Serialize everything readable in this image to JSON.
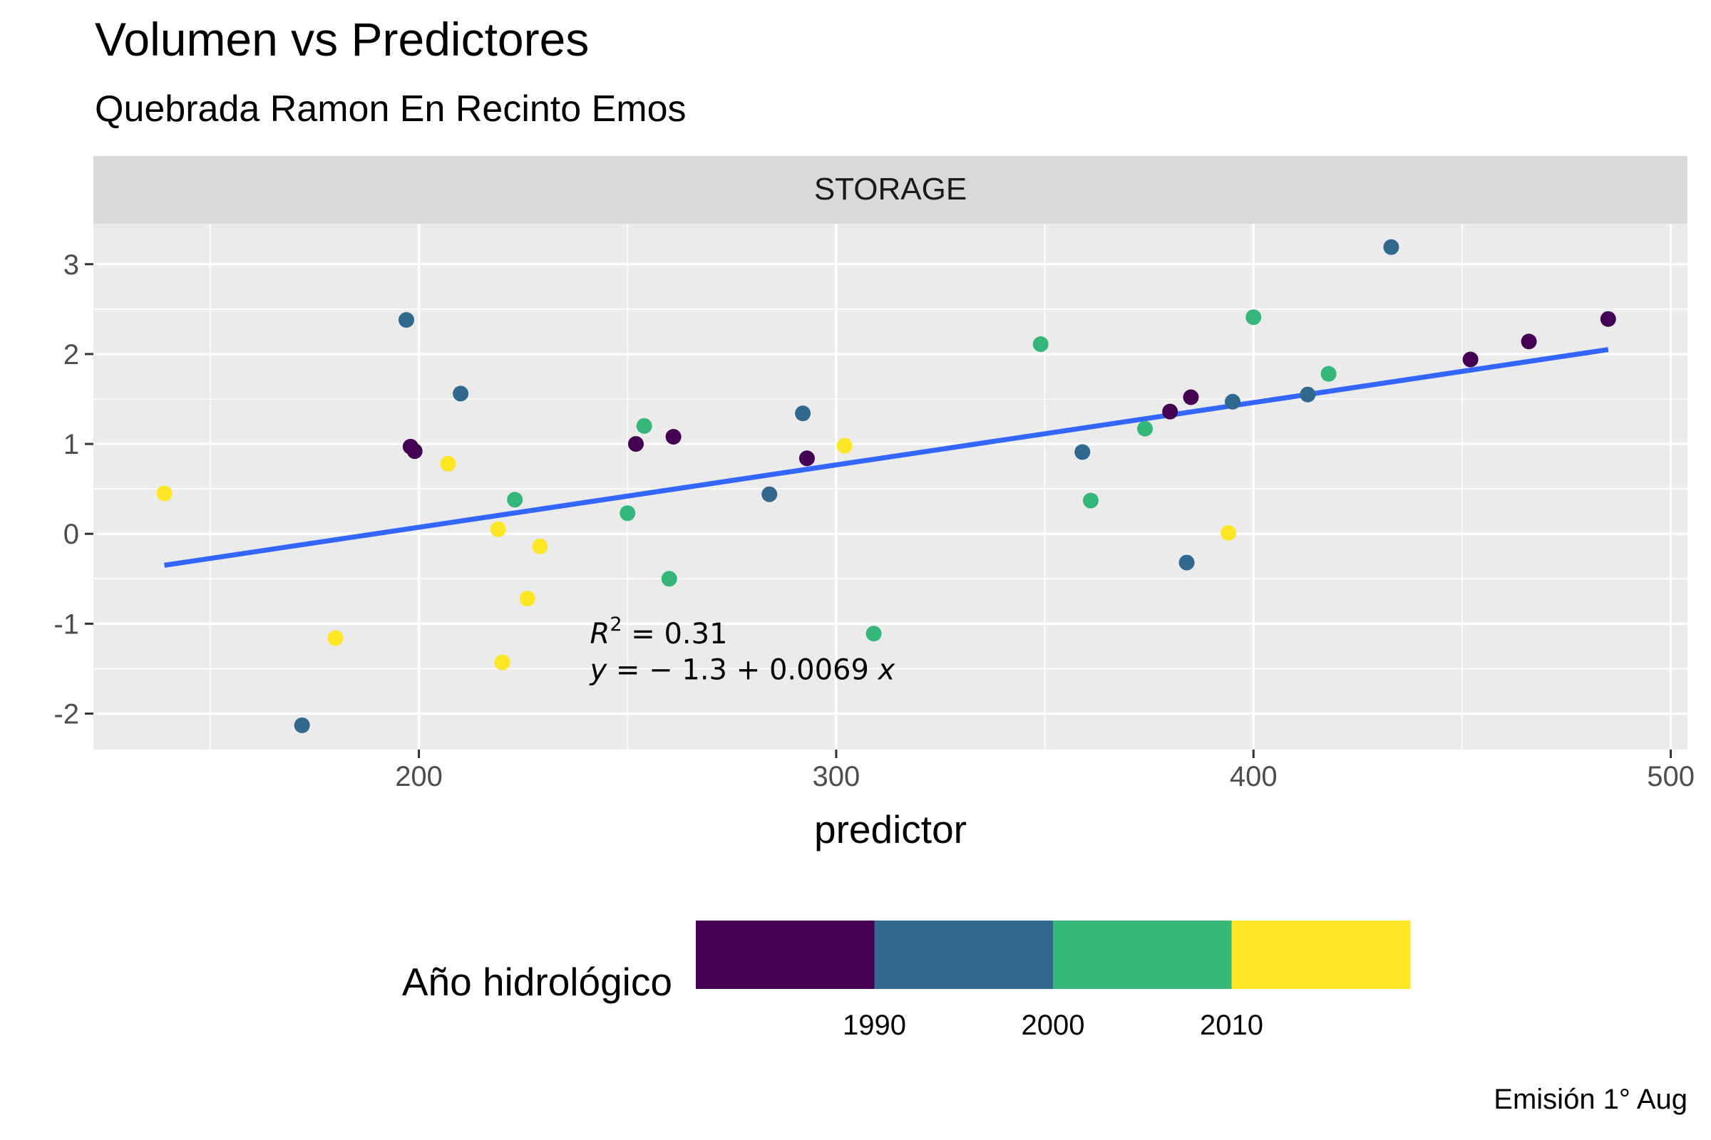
{
  "title": "Volumen vs Predictores",
  "subtitle": "Quebrada Ramon En Recinto Emos",
  "caption": "Emisión 1° Aug",
  "chart_data": {
    "type": "scatter",
    "facet_label": "STORAGE",
    "xlabel": "predictor",
    "ylabel": "",
    "xlim": [
      122,
      504
    ],
    "ylim": [
      -2.4,
      3.45
    ],
    "x_ticks": [
      200,
      300,
      400,
      500
    ],
    "y_ticks": [
      -2,
      -1,
      0,
      1,
      2,
      3
    ],
    "grid": true,
    "annotation": {
      "r2_prefix": "R",
      "r2_sup": "2",
      "r2_value": " = 0.31",
      "eq_y": "y",
      "eq_mid": " = − 1.3 + 0.0069 ",
      "eq_x": "x",
      "x": 241,
      "y_r2": -1.22,
      "y_eq": -1.62
    },
    "trend_line": {
      "color": "#3366FF",
      "x": [
        139,
        485
      ],
      "y": [
        -0.35,
        2.05
      ]
    },
    "legend": {
      "title": "Año hidrológico",
      "position": "bottom",
      "colors": [
        "#440154",
        "#31688E",
        "#35B779",
        "#FDE725"
      ],
      "labels": [
        "1990",
        "2000",
        "2010"
      ]
    },
    "points": [
      {
        "x": 139,
        "y": 0.45,
        "color": "#FDE725"
      },
      {
        "x": 172,
        "y": -2.13,
        "color": "#31688E"
      },
      {
        "x": 180,
        "y": -1.16,
        "color": "#FDE725"
      },
      {
        "x": 197,
        "y": 2.38,
        "color": "#31688E"
      },
      {
        "x": 198,
        "y": 0.97,
        "color": "#440154"
      },
      {
        "x": 199,
        "y": 0.92,
        "color": "#440154"
      },
      {
        "x": 207,
        "y": 0.78,
        "color": "#FDE725"
      },
      {
        "x": 210,
        "y": 1.56,
        "color": "#31688E"
      },
      {
        "x": 219,
        "y": 0.05,
        "color": "#FDE725"
      },
      {
        "x": 220,
        "y": -1.43,
        "color": "#FDE725"
      },
      {
        "x": 223,
        "y": 0.38,
        "color": "#35B779"
      },
      {
        "x": 226,
        "y": -0.72,
        "color": "#FDE725"
      },
      {
        "x": 229,
        "y": -0.14,
        "color": "#FDE725"
      },
      {
        "x": 250,
        "y": 0.23,
        "color": "#35B779"
      },
      {
        "x": 252,
        "y": 1.0,
        "color": "#440154"
      },
      {
        "x": 254,
        "y": 1.2,
        "color": "#35B779"
      },
      {
        "x": 260,
        "y": -0.5,
        "color": "#35B779"
      },
      {
        "x": 261,
        "y": 1.08,
        "color": "#440154"
      },
      {
        "x": 284,
        "y": 0.44,
        "color": "#31688E"
      },
      {
        "x": 292,
        "y": 1.34,
        "color": "#31688E"
      },
      {
        "x": 293,
        "y": 0.84,
        "color": "#440154"
      },
      {
        "x": 302,
        "y": 0.98,
        "color": "#FDE725"
      },
      {
        "x": 309,
        "y": -1.11,
        "color": "#35B779"
      },
      {
        "x": 349,
        "y": 2.11,
        "color": "#35B779"
      },
      {
        "x": 359,
        "y": 0.91,
        "color": "#31688E"
      },
      {
        "x": 361,
        "y": 0.37,
        "color": "#35B779"
      },
      {
        "x": 374,
        "y": 1.17,
        "color": "#35B779"
      },
      {
        "x": 380,
        "y": 1.36,
        "color": "#440154"
      },
      {
        "x": 384,
        "y": -0.32,
        "color": "#31688E"
      },
      {
        "x": 385,
        "y": 1.52,
        "color": "#440154"
      },
      {
        "x": 394,
        "y": 0.01,
        "color": "#FDE725"
      },
      {
        "x": 395,
        "y": 1.47,
        "color": "#31688E"
      },
      {
        "x": 400,
        "y": 2.41,
        "color": "#35B779"
      },
      {
        "x": 413,
        "y": 1.55,
        "color": "#31688E"
      },
      {
        "x": 418,
        "y": 1.78,
        "color": "#35B779"
      },
      {
        "x": 433,
        "y": 3.19,
        "color": "#31688E"
      },
      {
        "x": 452,
        "y": 1.94,
        "color": "#440154"
      },
      {
        "x": 466,
        "y": 2.14,
        "color": "#440154"
      },
      {
        "x": 485,
        "y": 2.39,
        "color": "#440154"
      }
    ]
  }
}
